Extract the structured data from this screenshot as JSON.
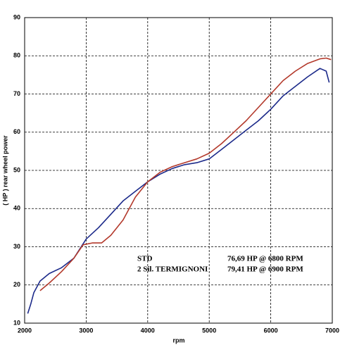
{
  "chart_data": {
    "type": "line",
    "x_label": "rpm",
    "y_label": "( HP )   rear  wheel  power",
    "xlim": [
      2000,
      7000
    ],
    "xticks": [
      2000,
      3000,
      4000,
      5000,
      6000,
      7000
    ],
    "ylim": [
      10,
      90
    ],
    "yticks": [
      10,
      20,
      30,
      40,
      50,
      60,
      70,
      80,
      90
    ],
    "grid": true,
    "series": [
      {
        "name": "STD",
        "color": "#1c2a8a",
        "peak_label": "76,69 HP @ 6800 RPM",
        "x": [
          2050,
          2100,
          2150,
          2250,
          2400,
          2600,
          2800,
          3000,
          3200,
          3400,
          3600,
          3800,
          4000,
          4200,
          4400,
          4600,
          4800,
          5000,
          5200,
          5400,
          5600,
          5800,
          6000,
          6200,
          6400,
          6600,
          6800,
          6900,
          6950
        ],
        "values": [
          12.5,
          15,
          18,
          21,
          23,
          24.5,
          27,
          32,
          35,
          38.5,
          42,
          44.5,
          47,
          49,
          50.5,
          51.5,
          52,
          53,
          55.5,
          58,
          60.5,
          63,
          66,
          69.5,
          72,
          74.5,
          76.7,
          76,
          73
        ]
      },
      {
        "name": "2 Sil. TERMIGNONI",
        "color": "#b3392b",
        "peak_label": "79,41 HP @ 6900 RPM",
        "x": [
          2250,
          2400,
          2600,
          2800,
          2950,
          3100,
          3250,
          3400,
          3600,
          3800,
          4000,
          4200,
          4400,
          4600,
          4800,
          5000,
          5200,
          5400,
          5600,
          5800,
          6000,
          6200,
          6400,
          6600,
          6800,
          6900,
          6980
        ],
        "values": [
          18.5,
          20.5,
          23.5,
          27,
          30.5,
          31,
          31,
          33,
          37,
          43,
          47,
          49.5,
          51,
          52,
          53,
          54.5,
          57,
          60,
          63,
          66.5,
          70,
          73.5,
          76,
          78,
          79.2,
          79.4,
          79
        ]
      }
    ]
  }
}
